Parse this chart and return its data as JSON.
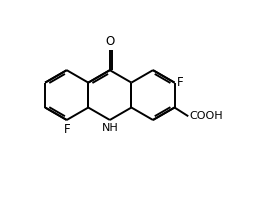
{
  "bg_color": "#ffffff",
  "line_color": "#000000",
  "line_width": 1.4,
  "font_size": 8.5,
  "bl": 0.95,
  "doff": 0.09,
  "xlim": [
    0,
    9
  ],
  "ylim": [
    0,
    7.5
  ]
}
